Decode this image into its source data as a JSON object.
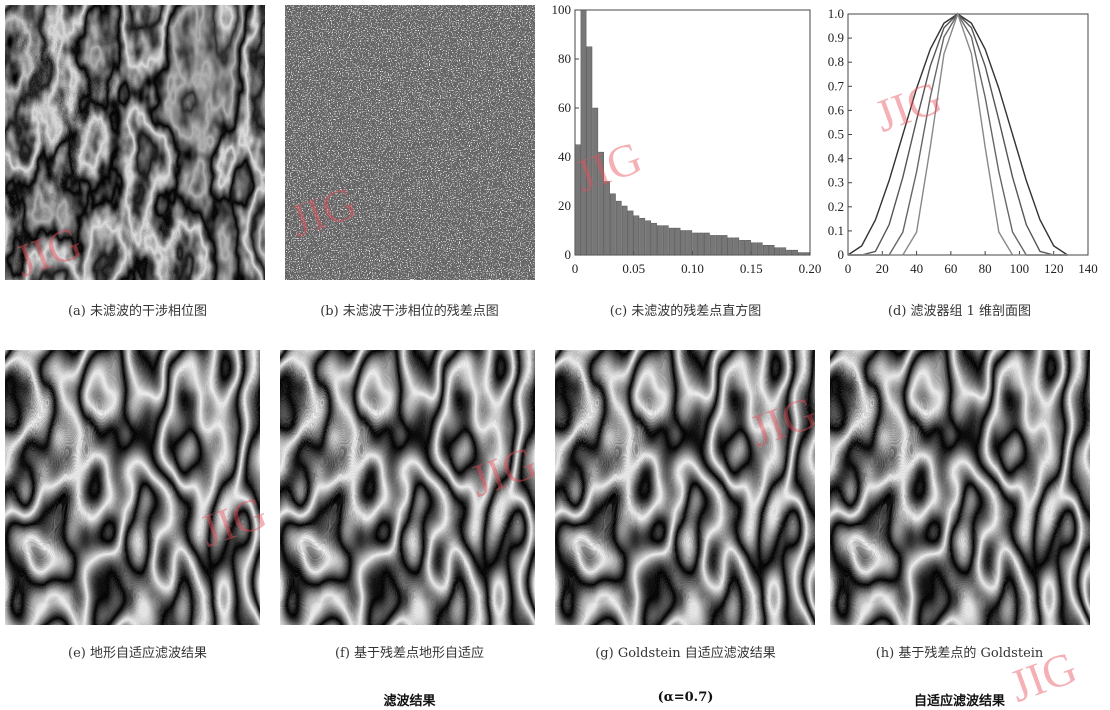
{
  "watermark": "JIG",
  "captions": [
    [
      "(a) 未滤波的干涉相位图"
    ],
    [
      "(b) 未滤波干涉相位的残差点图"
    ],
    [
      "(c) 未滤波的残差点直方图"
    ],
    [
      "(d) 滤波器组 1 维剖面图"
    ],
    [
      "(e) 地形自适应滤波结果"
    ],
    [
      "(f) 基于残差点地形自适应",
      "滤波结果"
    ],
    [
      "(g) Goldstein 自适应滤波结果",
      "(α=0.7)"
    ],
    [
      "(h) 基于残差点的 Goldstein",
      "自适应滤波结果"
    ]
  ],
  "chart_data": [
    {
      "type": "histogram",
      "color": "#777777",
      "bins": [
        0,
        0.005,
        0.01,
        0.015,
        0.02,
        0.025,
        0.03,
        0.035,
        0.04,
        0.045,
        0.05,
        0.055,
        0.06,
        0.065,
        0.07,
        0.075,
        0.08,
        0.085,
        0.09,
        0.095,
        0.1,
        0.105,
        0.11,
        0.115,
        0.12,
        0.125,
        0.13,
        0.135,
        0.14,
        0.145,
        0.15,
        0.155,
        0.16,
        0.165,
        0.17,
        0.175,
        0.18,
        0.185,
        0.19,
        0.195,
        0.2
      ],
      "counts": [
        45,
        100,
        85,
        60,
        42,
        30,
        25,
        22,
        20,
        18,
        16,
        15,
        14,
        13,
        12,
        12,
        11,
        11,
        10,
        10,
        9,
        9,
        9,
        8,
        8,
        8,
        7,
        7,
        6,
        6,
        5,
        5,
        4,
        4,
        3,
        3,
        2,
        2,
        1,
        1
      ],
      "xlim": [
        0,
        0.2
      ],
      "xticks": [
        0,
        0.05,
        {
          "value": 0.1,
          "label": "0.10"
        },
        0.15,
        {
          "value": 0.2,
          "label": "0.20"
        }
      ],
      "ylim": [
        0,
        100
      ],
      "yticks": [
        0,
        20,
        40,
        60,
        80,
        100
      ]
    },
    {
      "type": "line",
      "x": [
        0,
        8,
        16,
        24,
        32,
        40,
        48,
        56,
        64,
        72,
        80,
        88,
        96,
        104,
        112,
        120,
        128
      ],
      "series": [
        {
          "color": "#333333",
          "values": [
            0,
            0.038,
            0.146,
            0.309,
            0.5,
            0.691,
            0.854,
            0.962,
            1,
            0.962,
            0.854,
            0.691,
            0.5,
            0.309,
            0.146,
            0.038,
            0
          ]
        },
        {
          "color": "#555555",
          "values": [
            0,
            0,
            0.015,
            0.126,
            0.323,
            0.56,
            0.784,
            0.943,
            1,
            0.943,
            0.784,
            0.56,
            0.323,
            0.126,
            0.015,
            0,
            0
          ]
        },
        {
          "color": "#666666",
          "values": [
            0,
            0,
            0,
            0,
            0.095,
            0.345,
            0.655,
            0.905,
            1,
            0.905,
            0.655,
            0.345,
            0.095,
            0,
            0,
            0,
            0
          ]
        },
        {
          "color": "#888888",
          "values": [
            0,
            0,
            0,
            0,
            0,
            0.095,
            0.448,
            0.835,
            1,
            0.835,
            0.448,
            0.095,
            0,
            0,
            0,
            0,
            0
          ]
        }
      ],
      "xlim": [
        0,
        140
      ],
      "xticks": [
        0,
        20,
        40,
        60,
        80,
        100,
        120,
        140
      ],
      "ylim": [
        0,
        1
      ],
      "yticks": [
        0,
        0.1,
        0.2,
        0.3,
        0.4,
        0.5,
        0.6,
        0.7,
        0.8,
        0.9,
        {
          "value": 1,
          "label": "1.0"
        }
      ]
    }
  ]
}
